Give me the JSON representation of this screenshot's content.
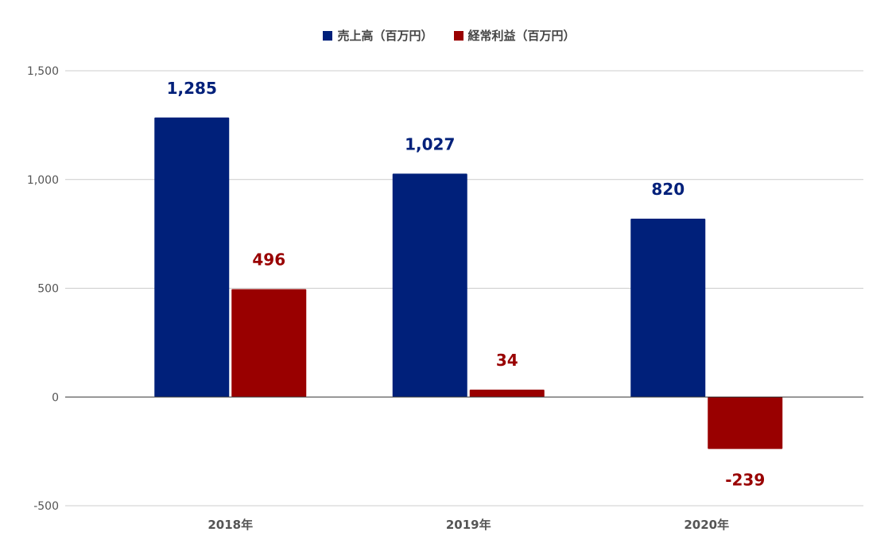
{
  "chart_data": {
    "type": "bar",
    "title": "",
    "xlabel": "",
    "ylabel": "",
    "categories": [
      "2018年",
      "2019年",
      "2020年"
    ],
    "series": [
      {
        "name": "売上高（百万円）",
        "color": "#00207a",
        "values": [
          1285,
          1027,
          820
        ]
      },
      {
        "name": "経常利益（百万円）",
        "color": "#990000",
        "values": [
          496,
          34,
          -239
        ]
      }
    ],
    "data_labels": [
      [
        "1,285",
        "1,027",
        "820"
      ],
      [
        "496",
        "34",
        "-239"
      ]
    ],
    "ylim": [
      -500,
      1500
    ],
    "yticks": [
      -500,
      0,
      500,
      1000,
      1500
    ],
    "ytick_labels": [
      "-500",
      "0",
      "500",
      "1,000",
      "1,500"
    ],
    "grid": true,
    "legend_position": "top"
  }
}
